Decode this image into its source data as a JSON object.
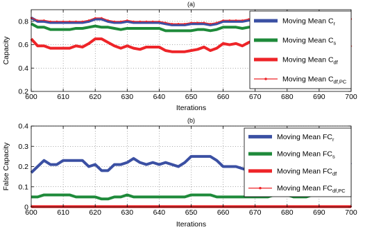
{
  "chart_data": [
    {
      "type": "line",
      "title": "(a)",
      "xlabel": "Iterations",
      "ylabel": "Capacity",
      "xlim": [
        600,
        700
      ],
      "ylim": [
        0.2,
        0.9
      ],
      "xticks": [
        600,
        610,
        620,
        630,
        640,
        650,
        660,
        670,
        680,
        690,
        700
      ],
      "yticks": [
        0.2,
        0.4,
        0.6,
        0.8
      ],
      "grid": true,
      "legend_position": "top-right",
      "x": [
        600,
        602,
        604,
        606,
        608,
        610,
        612,
        614,
        616,
        618,
        620,
        622,
        624,
        626,
        628,
        630,
        632,
        634,
        636,
        638,
        640,
        642,
        644,
        646,
        648,
        650,
        652,
        654,
        656,
        658,
        660,
        662,
        664,
        666,
        668,
        670,
        672,
        674,
        676,
        678,
        680,
        682,
        684,
        686,
        688,
        690,
        692,
        694,
        696,
        698,
        700
      ],
      "series": [
        {
          "name": "Moving Mean C",
          "name_sub": "r",
          "color": "#3b50a3",
          "marker": "",
          "values": [
            0.83,
            0.8,
            0.8,
            0.79,
            0.79,
            0.79,
            0.79,
            0.79,
            0.79,
            0.8,
            0.82,
            0.82,
            0.8,
            0.79,
            0.79,
            0.8,
            0.79,
            0.79,
            0.79,
            0.79,
            0.79,
            0.78,
            0.77,
            0.77,
            0.77,
            0.78,
            0.78,
            0.78,
            0.77,
            0.78,
            0.8,
            0.8,
            0.8,
            0.8,
            0.81,
            0.81,
            0.81,
            0.81,
            0.81,
            0.81,
            0.81,
            0.81,
            0.81,
            0.81,
            0.81,
            0.81,
            0.81,
            0.81,
            0.81,
            0.81,
            0.81
          ]
        },
        {
          "name": "Moving Mean C",
          "name_sub": "s",
          "color": "#1e8a3a",
          "marker": "",
          "values": [
            0.78,
            0.75,
            0.75,
            0.73,
            0.73,
            0.73,
            0.73,
            0.74,
            0.74,
            0.75,
            0.76,
            0.75,
            0.75,
            0.74,
            0.73,
            0.74,
            0.74,
            0.74,
            0.74,
            0.74,
            0.74,
            0.72,
            0.72,
            0.72,
            0.72,
            0.72,
            0.73,
            0.73,
            0.72,
            0.73,
            0.75,
            0.75,
            0.75,
            0.74,
            0.75,
            0.76,
            0.76,
            0.76,
            0.76,
            0.76,
            0.76,
            0.76,
            0.76,
            0.76,
            0.76,
            0.76,
            0.76,
            0.76,
            0.76,
            0.76,
            0.77
          ]
        },
        {
          "name": "Moving Mean C",
          "name_sub": "df",
          "color": "#ee2428",
          "marker": "",
          "values": [
            0.65,
            0.59,
            0.59,
            0.57,
            0.57,
            0.57,
            0.57,
            0.59,
            0.58,
            0.61,
            0.65,
            0.65,
            0.62,
            0.59,
            0.57,
            0.59,
            0.57,
            0.56,
            0.58,
            0.58,
            0.58,
            0.55,
            0.54,
            0.54,
            0.54,
            0.55,
            0.56,
            0.58,
            0.55,
            0.57,
            0.61,
            0.6,
            0.61,
            0.59,
            0.62,
            0.64,
            0.64,
            0.64,
            0.64,
            0.64,
            0.64,
            0.64,
            0.64,
            0.64,
            0.64,
            0.64,
            0.64,
            0.64,
            0.64,
            0.64,
            0.58
          ]
        },
        {
          "name": "Moving Mean C",
          "name_sub": "df,PC",
          "color": "#ee2428",
          "marker": "dot",
          "values": [
            0.83,
            0.81,
            0.81,
            0.8,
            0.8,
            0.8,
            0.8,
            0.8,
            0.8,
            0.81,
            0.83,
            0.83,
            0.81,
            0.8,
            0.8,
            0.81,
            0.8,
            0.8,
            0.8,
            0.8,
            0.8,
            0.79,
            0.78,
            0.78,
            0.78,
            0.79,
            0.79,
            0.79,
            0.78,
            0.79,
            0.81,
            0.81,
            0.81,
            0.81,
            0.82,
            0.82,
            0.82,
            0.82,
            0.82,
            0.82,
            0.82,
            0.82,
            0.82,
            0.82,
            0.82,
            0.82,
            0.82,
            0.82,
            0.82,
            0.82,
            0.82
          ]
        }
      ]
    },
    {
      "type": "line",
      "title": "(b)",
      "xlabel": "Iterations",
      "ylabel": "False Capacity",
      "xlim": [
        600,
        700
      ],
      "ylim": [
        0,
        0.4
      ],
      "xticks": [
        600,
        610,
        620,
        630,
        640,
        650,
        660,
        670,
        680,
        690,
        700
      ],
      "yticks": [
        0,
        0.1,
        0.2,
        0.3,
        0.4
      ],
      "grid": true,
      "legend_position": "top-right",
      "x": [
        600,
        602,
        604,
        606,
        608,
        610,
        612,
        614,
        616,
        618,
        620,
        622,
        624,
        626,
        628,
        630,
        632,
        634,
        636,
        638,
        640,
        642,
        644,
        646,
        648,
        650,
        652,
        654,
        656,
        658,
        660,
        662,
        664,
        666,
        668,
        670,
        672,
        674,
        676,
        678,
        680,
        682,
        684,
        686,
        688,
        690,
        692,
        694,
        696,
        698,
        700
      ],
      "series": [
        {
          "name": "Moving Mean FC",
          "name_sub": "r",
          "color": "#3b50a3",
          "marker": "",
          "values": [
            0.17,
            0.2,
            0.23,
            0.21,
            0.21,
            0.23,
            0.23,
            0.23,
            0.23,
            0.2,
            0.21,
            0.18,
            0.18,
            0.21,
            0.21,
            0.22,
            0.24,
            0.22,
            0.21,
            0.22,
            0.21,
            0.22,
            0.21,
            0.2,
            0.22,
            0.25,
            0.25,
            0.25,
            0.25,
            0.23,
            0.2,
            0.2,
            0.2,
            0.19,
            0.18,
            0.18,
            0.18,
            0.18,
            0.18,
            0.18,
            0.18,
            0.18,
            0.18,
            0.18,
            0.18,
            0.18,
            0.18,
            0.18,
            0.18,
            0.2,
            0.22
          ]
        },
        {
          "name": "Moving Mean FC",
          "name_sub": "s",
          "color": "#1e8a3a",
          "marker": "",
          "values": [
            0.05,
            0.05,
            0.06,
            0.06,
            0.06,
            0.06,
            0.06,
            0.05,
            0.05,
            0.05,
            0.05,
            0.04,
            0.04,
            0.05,
            0.05,
            0.06,
            0.05,
            0.05,
            0.05,
            0.05,
            0.05,
            0.05,
            0.05,
            0.05,
            0.05,
            0.06,
            0.06,
            0.06,
            0.06,
            0.05,
            0.05,
            0.05,
            0.05,
            0.05,
            0.05,
            0.05,
            0.05,
            0.05,
            0.06,
            0.06,
            0.06,
            0.05,
            0.05,
            0.05,
            0.06,
            0.06,
            0.06,
            0.06,
            0.06,
            0.06,
            0.06
          ]
        },
        {
          "name": "Moving Mean FC",
          "name_sub": "df",
          "color": "#ee2428",
          "marker": "",
          "values": [
            0.002,
            0.002,
            0.002,
            0.002,
            0.002,
            0.002,
            0.002,
            0.002,
            0.002,
            0.002,
            0.002,
            0.002,
            0.002,
            0.002,
            0.002,
            0.002,
            0.002,
            0.002,
            0.002,
            0.002,
            0.002,
            0.002,
            0.002,
            0.002,
            0.002,
            0.002,
            0.002,
            0.002,
            0.002,
            0.002,
            0.002,
            0.002,
            0.002,
            0.002,
            0.002,
            0.002,
            0.002,
            0.002,
            0.002,
            0.002,
            0.002,
            0.002,
            0.002,
            0.002,
            0.002,
            0.002,
            0.002,
            0.002,
            0.002,
            0.002,
            0.002
          ]
        },
        {
          "name": "Moving Mean FC",
          "name_sub": "df,PC",
          "color": "#ee2428",
          "marker": "dot",
          "values": [
            0.002,
            0.002,
            0.002,
            0.002,
            0.002,
            0.002,
            0.002,
            0.002,
            0.002,
            0.002,
            0.002,
            0.002,
            0.002,
            0.002,
            0.002,
            0.002,
            0.002,
            0.002,
            0.002,
            0.002,
            0.002,
            0.002,
            0.002,
            0.002,
            0.002,
            0.002,
            0.002,
            0.002,
            0.002,
            0.002,
            0.002,
            0.002,
            0.002,
            0.002,
            0.002,
            0.002,
            0.002,
            0.002,
            0.002,
            0.002,
            0.002,
            0.002,
            0.002,
            0.002,
            0.002,
            0.002,
            0.002,
            0.002,
            0.002,
            0.002,
            0.002
          ]
        }
      ]
    }
  ]
}
